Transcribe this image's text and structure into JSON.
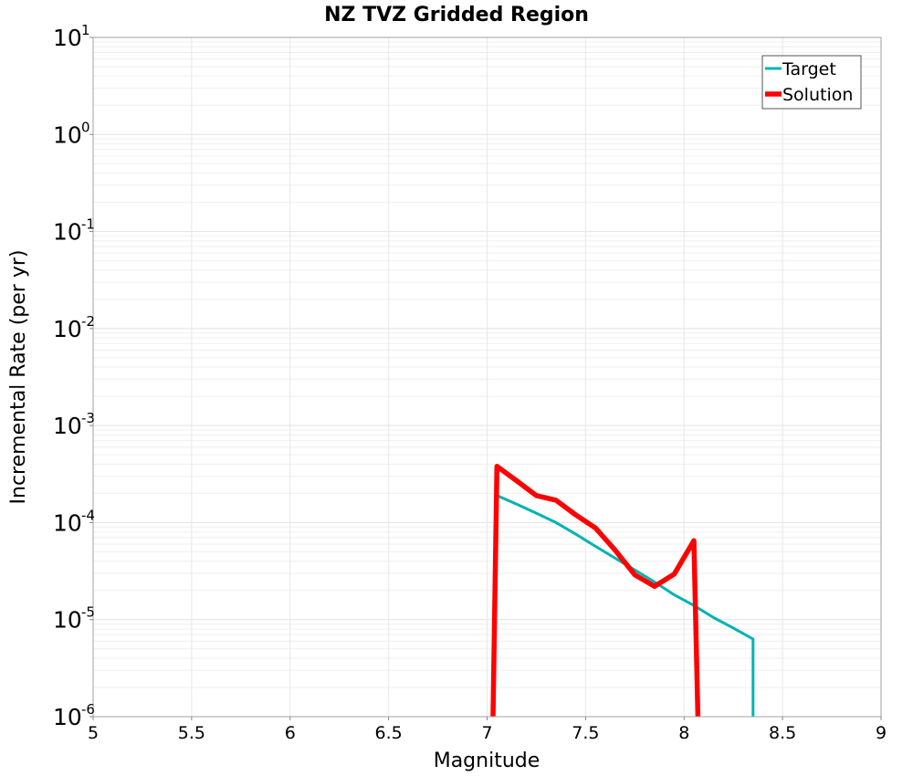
{
  "chart_data": {
    "type": "line",
    "title": "NZ TVZ Gridded Region",
    "xlabel": "Magnitude",
    "ylabel": "Incremental Rate (per yr)",
    "xlim": [
      5,
      9
    ],
    "ylim": [
      1e-06,
      10
    ],
    "y_scale": "log",
    "grid": true,
    "legend_position": "top-right",
    "x_ticks": [
      "5",
      "5.5",
      "6",
      "6.5",
      "7",
      "7.5",
      "8",
      "8.5",
      "9"
    ],
    "y_ticks": [
      {
        "base": "10",
        "exp": "1"
      },
      {
        "base": "10",
        "exp": "0"
      },
      {
        "base": "10",
        "exp": "-1"
      },
      {
        "base": "10",
        "exp": "-2"
      },
      {
        "base": "10",
        "exp": "-3"
      },
      {
        "base": "10",
        "exp": "-4"
      },
      {
        "base": "10",
        "exp": "-5"
      },
      {
        "base": "10",
        "exp": "-6"
      }
    ],
    "series": [
      {
        "name": "Target",
        "color": "#00b3b3",
        "x": [
          7.05,
          7.15,
          7.25,
          7.35,
          7.45,
          7.55,
          7.65,
          7.75,
          7.85,
          7.95,
          8.05,
          8.15,
          8.25,
          8.35,
          8.35
        ],
        "y": [
          0.00019,
          0.000155,
          0.000125,
          0.0001,
          7.6e-05,
          5.7e-05,
          4.3e-05,
          3.25e-05,
          2.45e-05,
          1.8e-05,
          1.4e-05,
          1.05e-05,
          8.2e-06,
          6.3e-06,
          1e-06
        ]
      },
      {
        "name": "Solution",
        "color": "#ff0000",
        "x": [
          7.03,
          7.05,
          7.15,
          7.25,
          7.35,
          7.45,
          7.55,
          7.65,
          7.75,
          7.85,
          7.95,
          8.05,
          8.07
        ],
        "y": [
          1e-06,
          0.00038,
          0.00027,
          0.00019,
          0.00017,
          0.00012,
          8.8e-05,
          5.2e-05,
          2.9e-05,
          2.2e-05,
          2.95e-05,
          6.5e-05,
          1e-06
        ]
      }
    ]
  }
}
